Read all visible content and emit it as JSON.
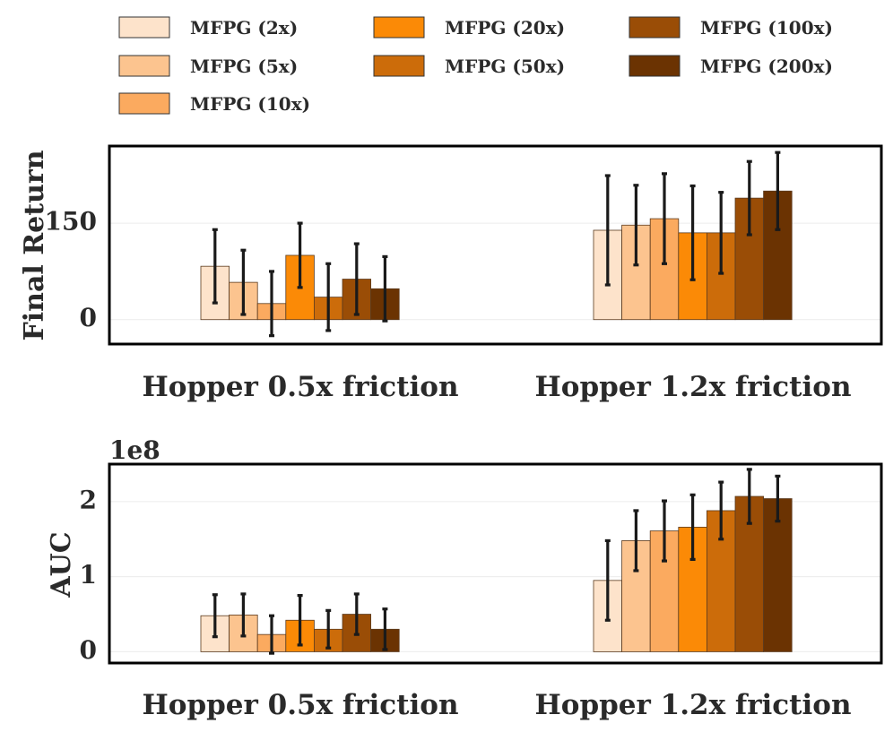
{
  "legend": [
    {
      "label": "MFPG (2x)",
      "color": "#fde3cb"
    },
    {
      "label": "MFPG (5x)",
      "color": "#fcc48f"
    },
    {
      "label": "MFPG (10x)",
      "color": "#fbaa5f"
    },
    {
      "label": "MFPG (20x)",
      "color": "#fb8a06"
    },
    {
      "label": "MFPG (50x)",
      "color": "#cc6c0a"
    },
    {
      "label": "MFPG (100x)",
      "color": "#9a4d06"
    },
    {
      "label": "MFPG (200x)",
      "color": "#6b3302"
    }
  ],
  "chart_data": [
    {
      "type": "bar",
      "ylabel": "Final Return",
      "xlabel": "",
      "multiplier_label": "",
      "ylim": [
        -38,
        270
      ],
      "yticks": [
        0,
        150
      ],
      "ytick_labels": [
        "0",
        "150"
      ],
      "categories": [
        "Hopper 0.5x friction",
        "Hopper 1.2x friction"
      ],
      "series": [
        {
          "name": "MFPG (2x)",
          "values": [
            83,
            139
          ],
          "errors": [
            57,
            85
          ]
        },
        {
          "name": "MFPG (5x)",
          "values": [
            58,
            147
          ],
          "errors": [
            50,
            62
          ]
        },
        {
          "name": "MFPG (10x)",
          "values": [
            25,
            157
          ],
          "errors": [
            50,
            70
          ]
        },
        {
          "name": "MFPG (20x)",
          "values": [
            100,
            135
          ],
          "errors": [
            50,
            73
          ]
        },
        {
          "name": "MFPG (50x)",
          "values": [
            35,
            135
          ],
          "errors": [
            52,
            63
          ]
        },
        {
          "name": "MFPG (100x)",
          "values": [
            63,
            189
          ],
          "errors": [
            55,
            57
          ]
        },
        {
          "name": "MFPG (200x)",
          "values": [
            48,
            200
          ],
          "errors": [
            50,
            60
          ]
        }
      ]
    },
    {
      "type": "bar",
      "ylabel": "AUC",
      "xlabel": "",
      "multiplier_label": "1e8",
      "ylim": [
        -0.15,
        2.5
      ],
      "yticks": [
        0,
        1,
        2
      ],
      "ytick_labels": [
        "0",
        "1",
        "2"
      ],
      "categories": [
        "Hopper 0.5x friction",
        "Hopper 1.2x friction"
      ],
      "series": [
        {
          "name": "MFPG (2x)",
          "values": [
            0.48,
            0.95
          ],
          "errors": [
            0.28,
            0.53
          ]
        },
        {
          "name": "MFPG (5x)",
          "values": [
            0.49,
            1.48
          ],
          "errors": [
            0.28,
            0.4
          ]
        },
        {
          "name": "MFPG (10x)",
          "values": [
            0.23,
            1.61
          ],
          "errors": [
            0.25,
            0.4
          ]
        },
        {
          "name": "MFPG (20x)",
          "values": [
            0.42,
            1.66
          ],
          "errors": [
            0.33,
            0.43
          ]
        },
        {
          "name": "MFPG (50x)",
          "values": [
            0.3,
            1.88
          ],
          "errors": [
            0.25,
            0.38
          ]
        },
        {
          "name": "MFPG (100x)",
          "values": [
            0.5,
            2.07
          ],
          "errors": [
            0.27,
            0.36
          ]
        },
        {
          "name": "MFPG (200x)",
          "values": [
            0.3,
            2.04
          ],
          "errors": [
            0.27,
            0.3
          ]
        }
      ]
    }
  ]
}
